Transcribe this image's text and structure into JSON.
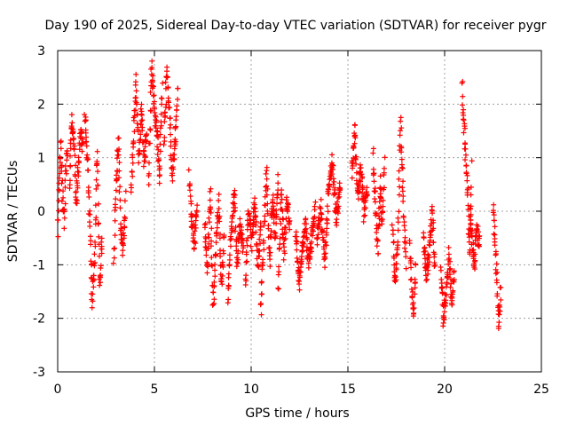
{
  "chart_data": {
    "type": "scatter",
    "title": "Day 190 of 2025, Sidereal Day-to-day VTEC variation (SDTVAR) for receiver pygr",
    "xlabel": "GPS time / hours",
    "ylabel": "SDTVAR / TECUs",
    "xlim": [
      0,
      25
    ],
    "ylim": [
      -3,
      3
    ],
    "xticks": [
      "0",
      "5",
      "10",
      "15",
      "20",
      "25"
    ],
    "yticks": [
      "-3",
      "-2",
      "-1",
      "0",
      "1",
      "2",
      "3"
    ],
    "grid": true,
    "marker": "+",
    "series_color": "#ff0000",
    "series": [
      {
        "name": "SDTVAR",
        "segments": [
          {
            "x0": 0.0,
            "x1": 0.5,
            "y": [
              -0.3,
              0.6,
              1.2,
              0.3,
              -0.2,
              0.8,
              1.1
            ]
          },
          {
            "x0": 0.6,
            "x1": 1.3,
            "y": [
              0.5,
              1.7,
              1.3,
              0.2,
              0.8,
              1.5,
              1.2
            ]
          },
          {
            "x0": 1.4,
            "x1": 2.3,
            "y": [
              1.8,
              1.0,
              -0.2,
              -1.7,
              -0.8,
              1.2,
              -1.4,
              -0.5
            ]
          },
          {
            "x0": 2.9,
            "x1": 3.5,
            "y": [
              -0.9,
              0.5,
              1.3,
              -0.3,
              -0.8,
              0.2
            ]
          },
          {
            "x0": 3.8,
            "x1": 4.6,
            "y": [
              0.3,
              1.5,
              2.4,
              1.0,
              1.9,
              0.9,
              1.5
            ]
          },
          {
            "x0": 4.7,
            "x1": 5.4,
            "y": [
              0.5,
              2.7,
              2.0,
              1.5,
              0.6,
              2.3
            ]
          },
          {
            "x0": 5.5,
            "x1": 6.2,
            "y": [
              1.2,
              2.6,
              1.8,
              0.6,
              1.3,
              2.2
            ]
          },
          {
            "x0": 6.8,
            "x1": 7.2,
            "y": [
              0.6,
              -0.2,
              -0.6,
              0.0
            ]
          },
          {
            "x0": 7.6,
            "x1": 8.6,
            "y": [
              -0.2,
              -1.1,
              0.4,
              -1.8,
              -0.7,
              0.2,
              -1.5,
              -0.5
            ]
          },
          {
            "x0": 8.8,
            "x1": 9.6,
            "y": [
              -1.7,
              -0.4,
              0.3,
              -1.0,
              -0.2,
              -0.8
            ]
          },
          {
            "x0": 9.7,
            "x1": 10.5,
            "y": [
              -1.3,
              0.0,
              -0.6,
              0.2,
              -1.0,
              -0.3
            ]
          },
          {
            "x0": 10.5,
            "x1": 11.4,
            "y": [
              -1.9,
              -0.5,
              0.8,
              -1.0,
              0.3,
              -0.4,
              0.6
            ]
          },
          {
            "x0": 11.4,
            "x1": 12.0,
            "y": [
              -1.5,
              0.4,
              -0.8,
              0.2,
              -0.3
            ]
          },
          {
            "x0": 12.3,
            "x1": 13.3,
            "y": [
              -0.3,
              -1.4,
              -0.8,
              -0.2,
              -1.0,
              -0.5,
              0.0
            ]
          },
          {
            "x0": 13.4,
            "x1": 14.6,
            "y": [
              -0.6,
              0.1,
              -1.0,
              0.4,
              0.9,
              -0.2,
              0.5
            ]
          },
          {
            "x0": 15.2,
            "x1": 16.0,
            "y": [
              0.7,
              1.5,
              0.3,
              0.9,
              -0.1,
              0.4
            ]
          },
          {
            "x0": 16.3,
            "x1": 16.9,
            "y": [
              1.0,
              0.2,
              -0.8,
              0.6,
              -0.3,
              0.9
            ]
          },
          {
            "x0": 17.3,
            "x1": 18.0,
            "y": [
              -0.2,
              -1.4,
              -0.6,
              1.7,
              0.2,
              -1.0
            ]
          },
          {
            "x0": 18.2,
            "x1": 18.5,
            "y": [
              -0.6,
              -1.4,
              -1.9,
              -1.0
            ]
          },
          {
            "x0": 18.9,
            "x1": 19.5,
            "y": [
              -0.4,
              -1.3,
              -0.8,
              0.0,
              -1.0
            ]
          },
          {
            "x0": 19.8,
            "x1": 20.5,
            "y": [
              -1.0,
              -2.0,
              -1.5,
              -0.8,
              -1.7,
              -1.2
            ]
          },
          {
            "x0": 20.9,
            "x1": 21.4,
            "y": [
              2.4,
              1.6,
              0.9,
              0.3,
              -0.9,
              0.8
            ]
          },
          {
            "x0": 21.3,
            "x1": 21.8,
            "y": [
              -0.1,
              -0.6,
              -1.0,
              -0.3,
              -0.7
            ]
          },
          {
            "x0": 22.5,
            "x1": 22.9,
            "y": [
              0.1,
              -0.6,
              -1.2,
              -2.2,
              -1.5
            ]
          }
        ]
      }
    ]
  }
}
